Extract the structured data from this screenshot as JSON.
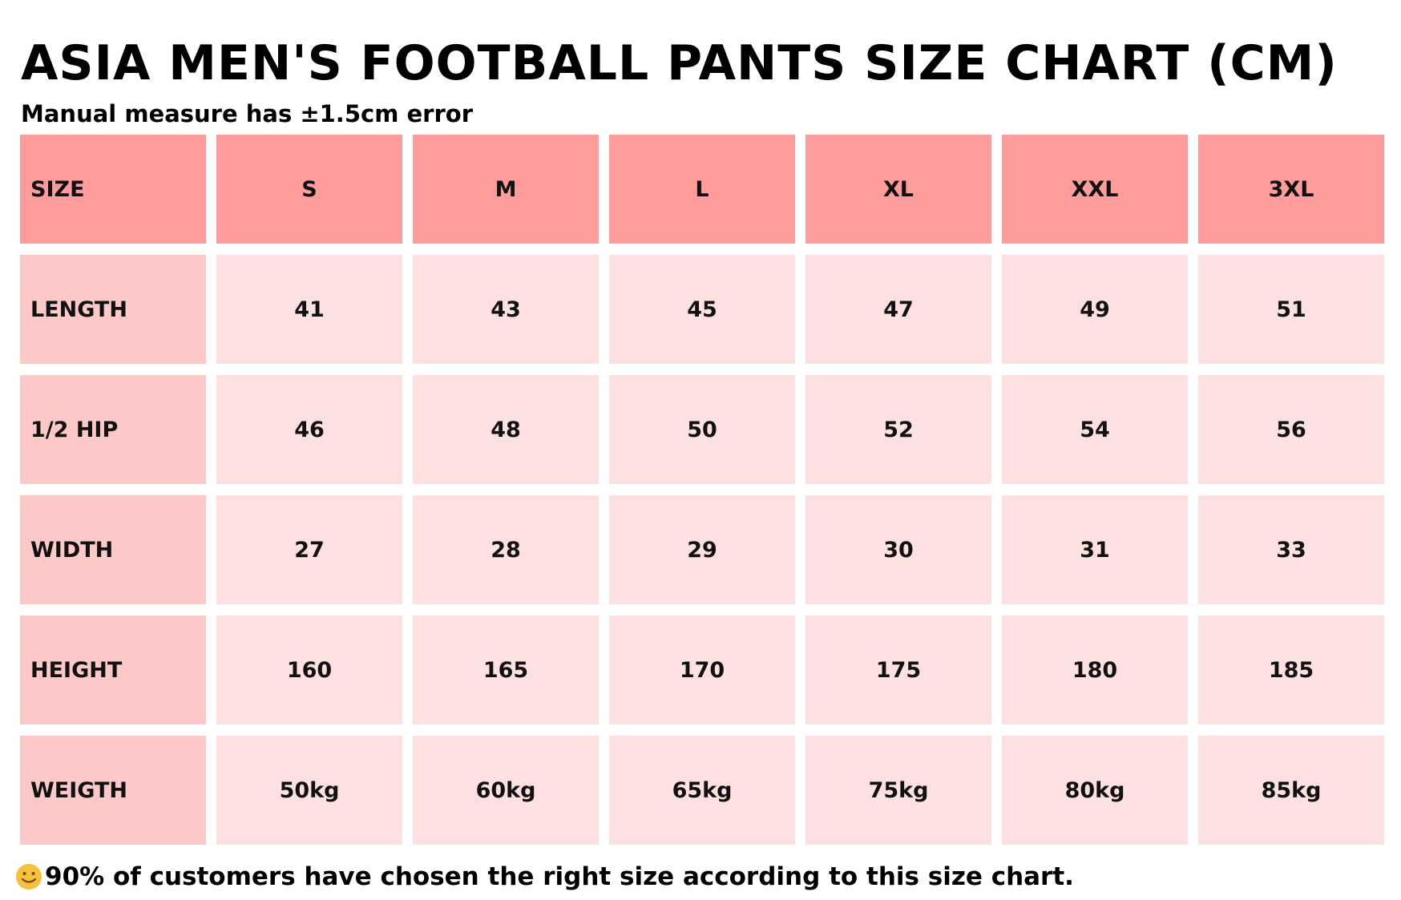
{
  "title": "ASIA MEN'S FOOTBALL PANTS SIZE CHART (CM)",
  "subtitle": "Manual measure has ±1.5cm error",
  "table": {
    "header_label": "SIZE",
    "sizes": [
      "S",
      "M",
      "L",
      "XL",
      "XXL",
      "3XL"
    ],
    "rows": [
      {
        "label": "LENGTH",
        "values": [
          "41",
          "43",
          "45",
          "47",
          "49",
          "51"
        ]
      },
      {
        "label": "1/2 HIP",
        "values": [
          "46",
          "48",
          "50",
          "52",
          "54",
          "56"
        ]
      },
      {
        "label": "WIDTH",
        "values": [
          "27",
          "28",
          "29",
          "30",
          "31",
          "33"
        ]
      },
      {
        "label": "HEIGHT",
        "values": [
          "160",
          "165",
          "170",
          "175",
          "180",
          "185"
        ]
      },
      {
        "label": "WEIGTH",
        "values": [
          "50kg",
          "60kg",
          "65kg",
          "75kg",
          "80kg",
          "85kg"
        ]
      }
    ]
  },
  "footnote": {
    "icon": "smiling-face-icon",
    "text": "90% of customers have chosen the right size according to this size chart."
  },
  "colors": {
    "header_cell": "#fe9b9b",
    "label_cell": "#fdc9c8",
    "value_cell": "#fde1e1",
    "text": "#000000",
    "emoji": "#f6c13a"
  }
}
